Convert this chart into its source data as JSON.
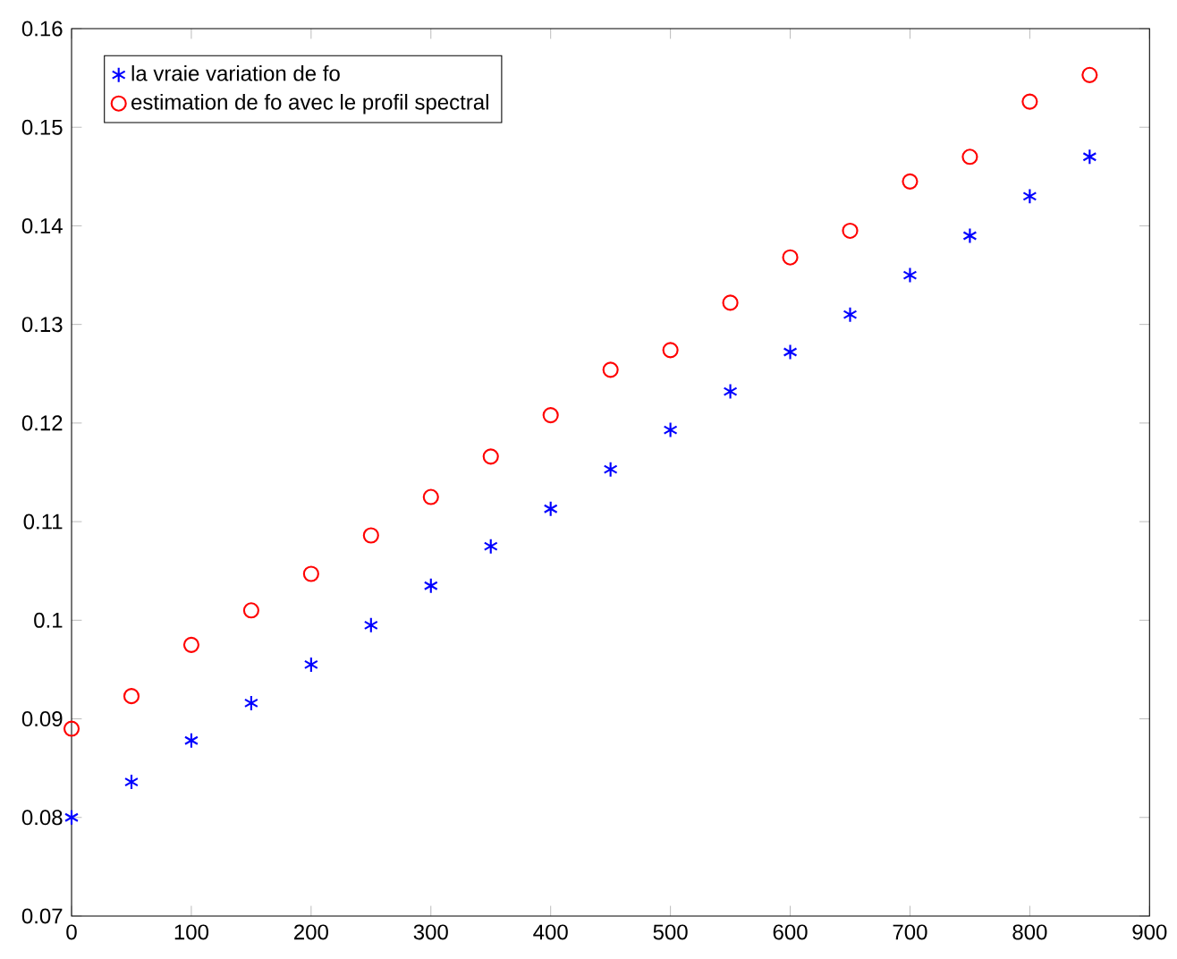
{
  "chart_data": {
    "type": "scatter",
    "x": [
      0,
      50,
      100,
      150,
      200,
      250,
      300,
      350,
      400,
      450,
      500,
      550,
      600,
      650,
      700,
      750,
      800,
      850
    ],
    "series": [
      {
        "name": "la vraie variation de fo",
        "color": "#0000ff",
        "marker": "cross",
        "values": [
          0.08,
          0.0836,
          0.0878,
          0.0916,
          0.0955,
          0.0995,
          0.1035,
          0.1075,
          0.1113,
          0.1153,
          0.1193,
          0.1232,
          0.1272,
          0.131,
          0.135,
          0.139,
          0.143,
          0.147
        ]
      },
      {
        "name": "estimation de fo avec le profil spectral",
        "color": "#ff0000",
        "marker": "circle",
        "values": [
          0.089,
          0.0923,
          0.0975,
          0.101,
          0.1047,
          0.1086,
          0.1125,
          0.1166,
          0.1208,
          0.1254,
          0.1274,
          0.1322,
          0.1368,
          0.1395,
          0.1445,
          0.147,
          0.1526,
          0.1553
        ]
      }
    ],
    "xlim": [
      0,
      900
    ],
    "xticks": [
      0,
      100,
      200,
      300,
      400,
      500,
      600,
      700,
      800,
      900
    ],
    "ylim": [
      0.07,
      0.16
    ],
    "yticks": [
      0.07,
      0.08,
      0.09,
      0.1,
      0.11,
      0.12,
      0.13,
      0.14,
      0.15,
      0.16
    ],
    "legend": "top left",
    "grid": false
  }
}
